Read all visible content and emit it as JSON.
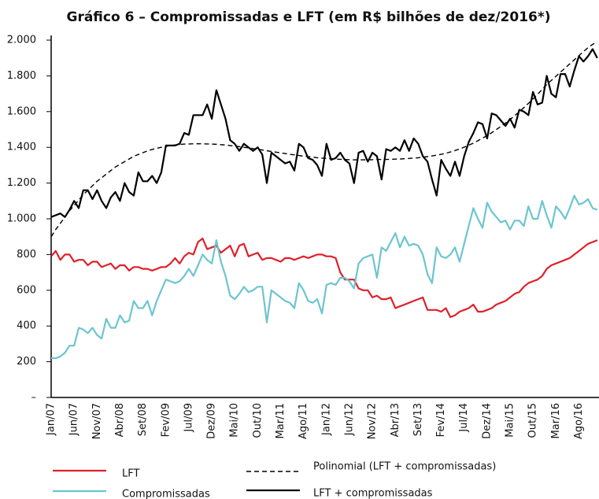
{
  "chart_data": {
    "type": "line",
    "title": "Gráfico 6 – Compromissadas e LFT (em R$ bilhões de dez/2016*)",
    "categories": [
      "Jan/07",
      null,
      null,
      null,
      null,
      "Jun/07",
      null,
      null,
      null,
      null,
      "Nov/07",
      null,
      null,
      null,
      null,
      "Abr/08",
      null,
      null,
      null,
      null,
      "Set/08",
      null,
      null,
      null,
      null,
      "Fev/09",
      null,
      null,
      null,
      null,
      "Jul/09",
      null,
      null,
      null,
      null,
      "Dez/09",
      null,
      null,
      null,
      null,
      "Mai/10",
      null,
      null,
      null,
      null,
      "Out/10",
      null,
      null,
      null,
      null,
      "Mar/11",
      null,
      null,
      null,
      null,
      "Ago/11",
      null,
      null,
      null,
      null,
      "Jan/12",
      null,
      null,
      null,
      null,
      "Jun/12",
      null,
      null,
      null,
      null,
      "Nov/12",
      null,
      null,
      null,
      null,
      "Abr/13",
      null,
      null,
      null,
      null,
      "Set/13",
      null,
      null,
      null,
      null,
      "Fev/14",
      null,
      null,
      null,
      null,
      "Jul/14",
      null,
      null,
      null,
      null,
      "Dez/14",
      null,
      null,
      null,
      null,
      "Mai/15",
      null,
      null,
      null,
      null,
      "Out/15",
      null,
      null,
      null,
      null,
      "Mar/16",
      null,
      null,
      null,
      null,
      "Ago/16",
      null,
      null,
      null,
      null
    ],
    "series": [
      {
        "name": "LFT",
        "color": "#e0202a",
        "values": [
          790,
          820,
          770,
          800,
          800,
          760,
          770,
          770,
          740,
          760,
          760,
          730,
          740,
          750,
          720,
          740,
          740,
          710,
          730,
          730,
          720,
          720,
          710,
          720,
          730,
          730,
          750,
          780,
          750,
          790,
          810,
          800,
          870,
          890,
          830,
          840,
          850,
          810,
          830,
          850,
          790,
          850,
          860,
          790,
          800,
          810,
          770,
          780,
          780,
          770,
          760,
          780,
          780,
          770,
          780,
          790,
          780,
          790,
          800,
          800,
          790,
          790,
          780,
          700,
          660,
          660,
          660,
          610,
          600,
          600,
          560,
          570,
          550,
          550,
          560,
          500,
          510,
          520,
          530,
          540,
          550,
          560,
          490,
          490,
          490,
          480,
          500,
          450,
          460,
          480,
          490,
          500,
          520,
          480,
          480,
          490,
          500,
          520,
          530,
          540,
          560,
          580,
          590,
          620,
          640,
          650,
          660,
          680,
          720,
          740,
          750,
          760,
          770,
          780,
          800,
          820,
          840,
          860,
          870,
          880
        ]
      },
      {
        "name": "Compromissadas",
        "color": "#6cc5cf",
        "values": [
          220,
          220,
          230,
          250,
          290,
          290,
          390,
          380,
          360,
          390,
          350,
          330,
          440,
          390,
          390,
          460,
          420,
          430,
          540,
          500,
          500,
          540,
          460,
          540,
          600,
          660,
          650,
          640,
          650,
          680,
          720,
          680,
          740,
          800,
          770,
          750,
          880,
          760,
          680,
          570,
          550,
          580,
          620,
          590,
          600,
          620,
          620,
          420,
          600,
          580,
          560,
          540,
          530,
          500,
          640,
          600,
          540,
          530,
          550,
          470,
          630,
          640,
          630,
          670,
          670,
          650,
          610,
          750,
          780,
          790,
          800,
          670,
          840,
          820,
          870,
          920,
          840,
          900,
          850,
          860,
          850,
          800,
          690,
          640,
          840,
          790,
          780,
          800,
          840,
          760,
          860,
          960,
          1060,
          1000,
          950,
          1090,
          1040,
          1010,
          980,
          990,
          940,
          990,
          990,
          960,
          1070,
          1000,
          1000,
          1100,
          1020,
          950,
          1070,
          1040,
          1000,
          1060,
          1130,
          1080,
          1090,
          1110,
          1060,
          1050
        ]
      },
      {
        "name": "Polinomial (LFT + compromissadas)",
        "color": "#000000",
        "dash": true,
        "values": [
          900,
          940,
          975,
          1010,
          1045,
          1075,
          1105,
          1135,
          1160,
          1185,
          1210,
          1230,
          1250,
          1270,
          1290,
          1305,
          1320,
          1335,
          1350,
          1360,
          1370,
          1380,
          1388,
          1395,
          1400,
          1405,
          1410,
          1413,
          1416,
          1418,
          1419,
          1420,
          1420,
          1420,
          1419,
          1418,
          1417,
          1415,
          1413,
          1410,
          1407,
          1404,
          1400,
          1397,
          1393,
          1389,
          1385,
          1381,
          1377,
          1373,
          1369,
          1365,
          1361,
          1358,
          1354,
          1351,
          1348,
          1345,
          1342,
          1340,
          1338,
          1336,
          1334,
          1333,
          1332,
          1331,
          1330,
          1330,
          1330,
          1331,
          1331,
          1332,
          1332,
          1332,
          1333,
          1334,
          1335,
          1336,
          1338,
          1340,
          1342,
          1345,
          1348,
          1352,
          1356,
          1361,
          1367,
          1374,
          1382,
          1391,
          1401,
          1412,
          1424,
          1437,
          1451,
          1466,
          1482,
          1499,
          1517,
          1536,
          1556,
          1577,
          1599,
          1622,
          1646,
          1671,
          1697,
          1724,
          1752,
          1775,
          1798,
          1821,
          1844,
          1867,
          1890,
          1913,
          1936,
          1958,
          1976,
          1990
        ]
      },
      {
        "name": "LFT + compromissadas",
        "color": "#000000",
        "values": [
          1010,
          1020,
          1030,
          1010,
          1050,
          1100,
          1060,
          1160,
          1160,
          1110,
          1160,
          1100,
          1060,
          1120,
          1150,
          1100,
          1200,
          1150,
          1130,
          1260,
          1210,
          1210,
          1240,
          1200,
          1260,
          1410,
          1410,
          1410,
          1420,
          1480,
          1470,
          1580,
          1580,
          1580,
          1640,
          1560,
          1720,
          1640,
          1560,
          1440,
          1420,
          1380,
          1420,
          1400,
          1380,
          1400,
          1360,
          1200,
          1370,
          1350,
          1330,
          1310,
          1320,
          1270,
          1420,
          1400,
          1340,
          1330,
          1300,
          1240,
          1420,
          1330,
          1340,
          1370,
          1330,
          1310,
          1200,
          1370,
          1380,
          1320,
          1370,
          1350,
          1220,
          1390,
          1380,
          1400,
          1380,
          1440,
          1380,
          1450,
          1420,
          1350,
          1320,
          1220,
          1130,
          1330,
          1280,
          1240,
          1320,
          1240,
          1350,
          1430,
          1480,
          1540,
          1530,
          1450,
          1590,
          1580,
          1550,
          1520,
          1560,
          1510,
          1610,
          1600,
          1580,
          1710,
          1640,
          1650,
          1800,
          1700,
          1680,
          1810,
          1810,
          1740,
          1830,
          1910,
          1880,
          1910,
          1950,
          1900
        ]
      }
    ],
    "ylim": [
      0,
      2000
    ],
    "yticks": [
      {
        "value": 0,
        "label": "–"
      },
      200,
      400,
      600,
      800,
      {
        "value": 1000,
        "label": "1.000"
      },
      {
        "value": 1200,
        "label": "1.200"
      },
      {
        "value": 1400,
        "label": "1.400"
      },
      {
        "value": 1600,
        "label": "1.600"
      },
      {
        "value": 1800,
        "label": "1.800"
      },
      {
        "value": 2000,
        "label": "2.000"
      }
    ],
    "grid": false
  }
}
